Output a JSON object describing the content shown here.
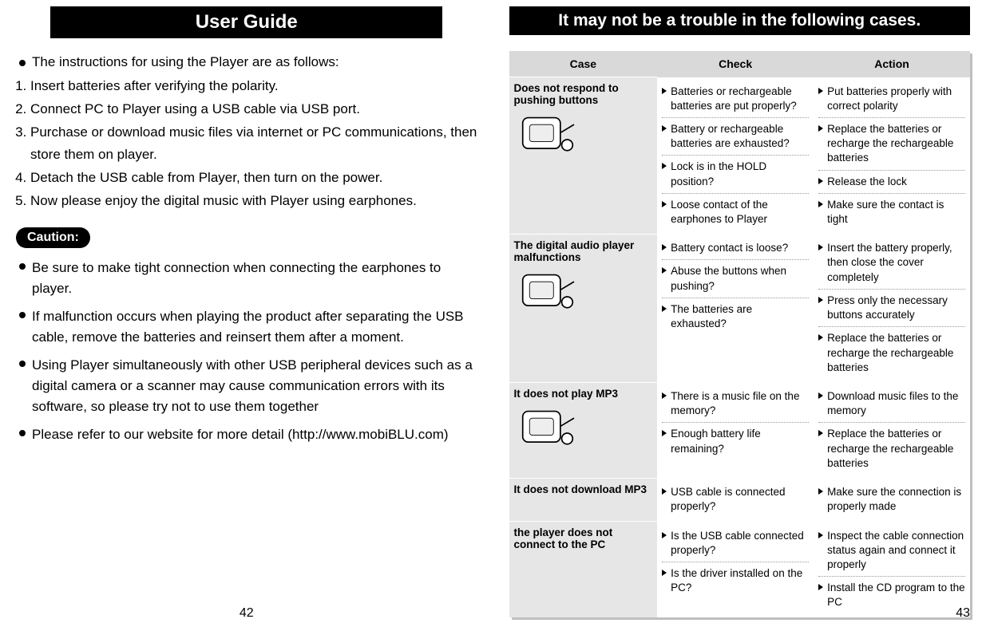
{
  "left": {
    "header": "User Guide",
    "intro": "The instructions for using the Player are as follows:",
    "steps": [
      "Insert batteries after verifying the polarity.",
      "Connect PC to Player using a USB cable via USB port.",
      "Purchase or download music files via internet or PC communications, then store them on player.",
      "Detach the USB cable from Player, then turn on the power.",
      "Now please enjoy the digital music with Player using earphones."
    ],
    "caution_label": "Caution:",
    "cautions": [
      "Be sure to make tight connection when connecting the earphones to player.",
      "If malfunction occurs when playing the product after separating the USB cable, remove the batteries and reinsert them after a moment.",
      "Using Player simultaneously with other USB peripheral devices such as a digital camera or a scanner may cause communication errors with its software, so please try not to use them together",
      "Please refer to our website for more detail (http://www.mobiBLU.com)"
    ],
    "page_number": "42"
  },
  "right": {
    "header": "It may not be a trouble in the following cases.",
    "columns": [
      "Case",
      "Check",
      "Action"
    ],
    "rows": [
      {
        "case": "Does not respond to pushing buttons",
        "checks": [
          "Batteries or rechargeable batteries are put properly?",
          "Battery or rechargeable batteries are exhausted?",
          "Lock is in the HOLD position?",
          "Loose contact of the earphones to Player"
        ],
        "actions": [
          "Put batteries properly with correct polarity",
          "Replace the batteries or recharge the rechargeable batteries",
          "Release the lock",
          "Make sure the contact is tight"
        ]
      },
      {
        "case": "The digital audio player malfunctions",
        "checks": [
          "Battery contact is loose?",
          "Abuse the buttons when pushing?",
          "The batteries are exhausted?"
        ],
        "actions": [
          "Insert the battery properly, then close the cover completely",
          "Press only the necessary buttons accurately",
          "Replace the batteries or recharge the rechargeable batteries"
        ]
      },
      {
        "case": "It does not play MP3",
        "checks": [
          "There is a music file on the memory?",
          "Enough battery life remaining?"
        ],
        "actions": [
          "Download music files to the memory",
          "Replace the batteries or recharge the rechargeable batteries"
        ]
      },
      {
        "case": "It does not download MP3",
        "checks": [
          "USB cable is connected properly?"
        ],
        "actions": [
          "Make sure the connection is properly made"
        ]
      },
      {
        "case": "the player does not connect to the PC",
        "checks": [
          "Is the USB cable connected properly?",
          "Is the driver installed on the PC?"
        ],
        "actions": [
          "Inspect the cable connection status again and connect it properly",
          "Install the CD program to the PC"
        ]
      }
    ],
    "page_number": "43"
  },
  "colors": {
    "header_bg": "#000000",
    "header_fg": "#ffffff",
    "table_header_bg": "#d9d9d9",
    "case_cell_bg": "#e6e6e6",
    "shadow": "#bfbfbf"
  }
}
